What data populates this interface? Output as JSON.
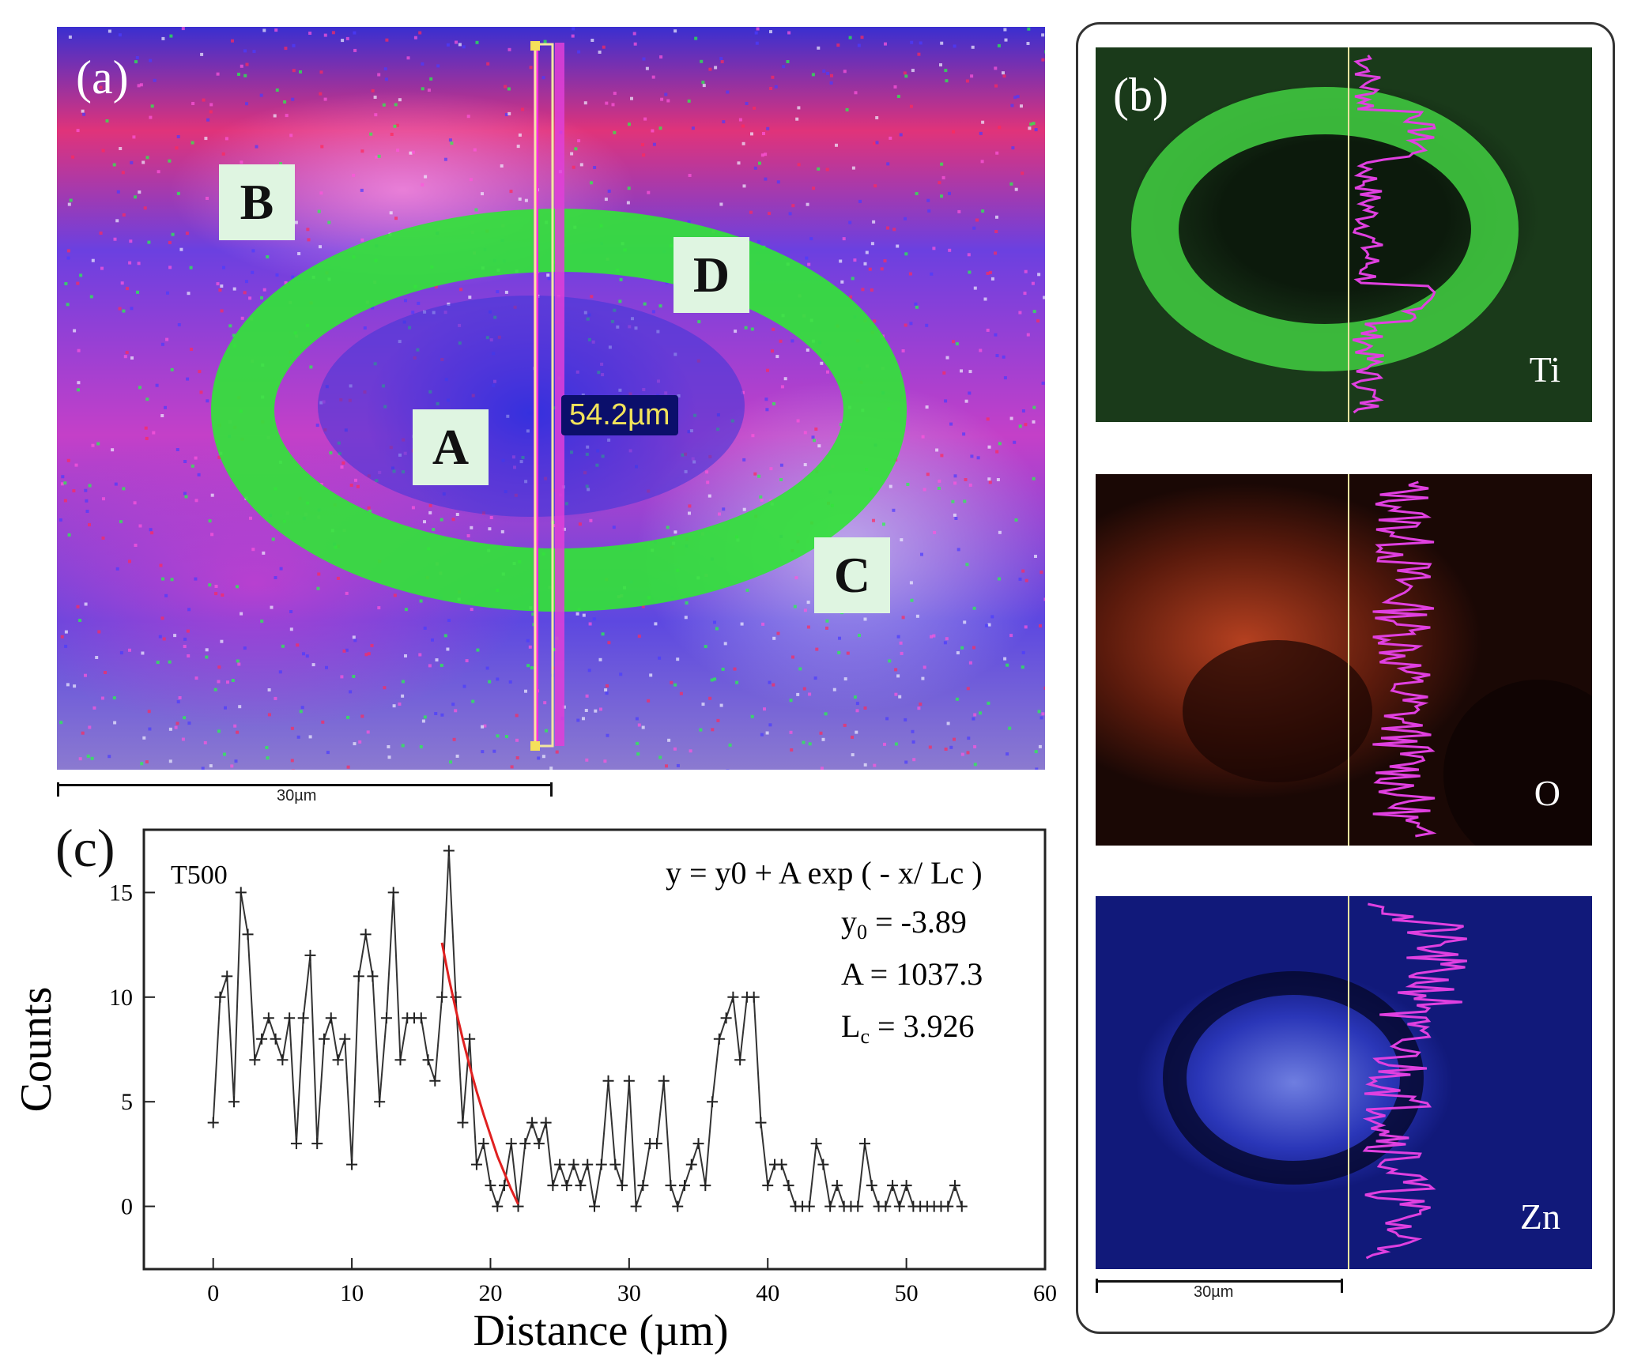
{
  "panel_a": {
    "label": "(a)",
    "regions": [
      "A",
      "B",
      "C",
      "D"
    ],
    "measure_text": "54.2µm",
    "scale_text": "30µm"
  },
  "panel_b": {
    "label": "(b)",
    "maps": [
      {
        "element": "Ti",
        "color": "#3ecb3e",
        "bg": "#0b1a0b"
      },
      {
        "element": "O",
        "color": "#d04a2a",
        "bg": "#1a0805"
      },
      {
        "element": "Zn",
        "color": "#4046d8",
        "bg": "#081040"
      }
    ],
    "profile_color": "#e040e0",
    "scale_text": "30µm"
  },
  "chart_data": {
    "type": "scatter",
    "panel_label": "(c)",
    "sample_label": "T500",
    "xlabel": "Distance (µm)",
    "ylabel": "Counts",
    "xlim": [
      -5,
      60
    ],
    "ylim": [
      -3,
      18
    ],
    "xticks": [
      0,
      10,
      20,
      30,
      40,
      50,
      60
    ],
    "yticks": [
      0,
      5,
      10,
      15
    ],
    "equation": "y = y0 + A exp ( - x/ Lc )",
    "fit_params": {
      "y0": "-3.89",
      "A": "1037.3",
      "Lc": "3.926"
    },
    "series": [
      {
        "marker": "+",
        "x": [
          0,
          0.5,
          1,
          1.5,
          2,
          2.5,
          3,
          3.5,
          4,
          4.5,
          5,
          5.5,
          6,
          6.5,
          7,
          7.5,
          8,
          8.5,
          9,
          9.5,
          10,
          10.5,
          11,
          11.5,
          12,
          12.5,
          13,
          13.5,
          14,
          14.5,
          15,
          15.5,
          16,
          16.5,
          17,
          17.5,
          18,
          18.5,
          19,
          19.5,
          20,
          20.5,
          21,
          21.5,
          22,
          22.5,
          23,
          23.5,
          24,
          24.5,
          25,
          25.5,
          26,
          26.5,
          27,
          27.5,
          28,
          28.5,
          29,
          29.5,
          30,
          30.5,
          31,
          31.5,
          32,
          32.5,
          33,
          33.5,
          34,
          34.5,
          35,
          35.5,
          36,
          36.5,
          37,
          37.5,
          38,
          38.5,
          39,
          39.5,
          40,
          40.5,
          41,
          41.5,
          42,
          42.5,
          43,
          43.5,
          44,
          44.5,
          45,
          45.5,
          46,
          46.5,
          47,
          47.5,
          48,
          48.5,
          49,
          49.5,
          50,
          50.5,
          51,
          51.5,
          52,
          52.5,
          53,
          53.5,
          54
        ],
        "y": [
          4,
          10,
          11,
          5,
          15,
          13,
          7,
          8,
          9,
          8,
          7,
          9,
          3,
          9,
          12,
          3,
          8,
          9,
          7,
          8,
          2,
          11,
          13,
          11,
          5,
          9,
          15,
          7,
          9,
          9,
          9,
          7,
          6,
          10,
          17,
          10,
          4,
          8,
          2,
          3,
          1,
          0,
          1,
          3,
          0,
          3,
          4,
          3,
          4,
          1,
          2,
          1,
          2,
          1,
          2,
          0,
          2,
          6,
          2,
          1,
          6,
          0,
          1,
          3,
          3,
          6,
          1,
          0,
          1,
          2,
          3,
          1,
          5,
          8,
          9,
          10,
          7,
          10,
          10,
          4,
          1,
          2,
          2,
          1,
          0,
          0,
          0,
          3,
          2,
          0,
          1,
          0,
          0,
          0,
          3,
          1,
          0,
          0,
          1,
          0,
          1,
          0,
          0,
          0,
          0,
          0,
          0,
          1,
          0
        ]
      },
      {
        "name": "fit",
        "type": "line",
        "color": "#e02020",
        "x": [
          16.5,
          17,
          17.5,
          18,
          18.5,
          19,
          19.5,
          20,
          20.5,
          21,
          21.5,
          22
        ],
        "y": [
          12.6,
          10.9,
          9.4,
          8.0,
          6.7,
          5.5,
          4.4,
          3.4,
          2.4,
          1.6,
          0.8,
          0.1
        ]
      }
    ]
  }
}
